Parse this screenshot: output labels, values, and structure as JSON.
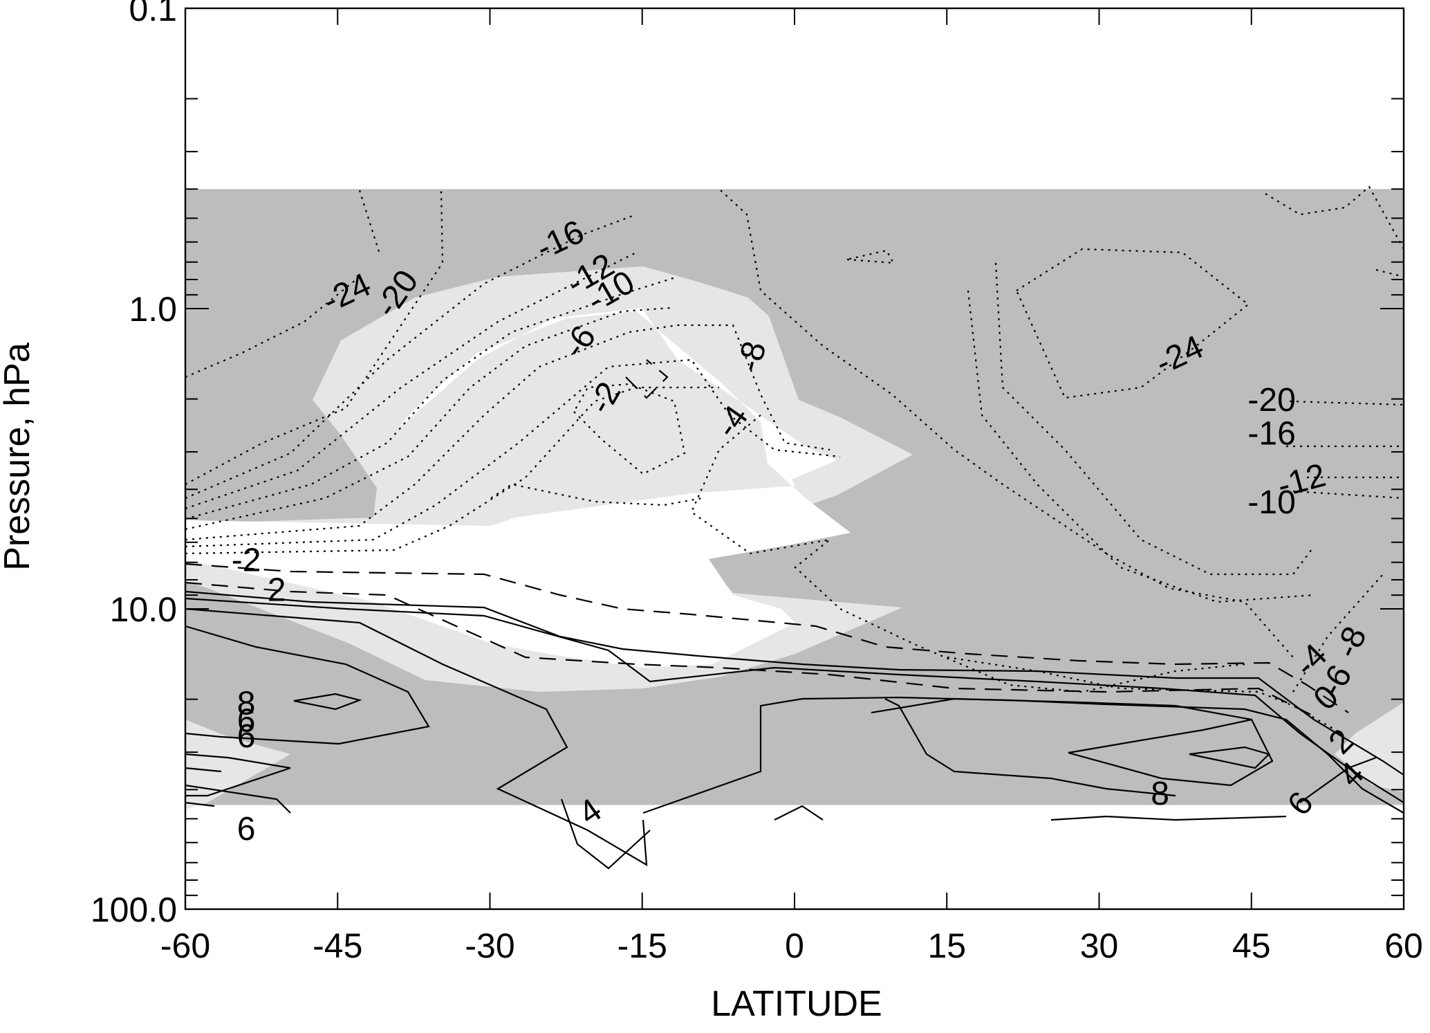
{
  "chart_data": {
    "type": "contour",
    "xlabel": "LATITUDE",
    "ylabel": "Pressure, hPa",
    "xlim": [
      -60,
      60
    ],
    "ylim_pressure_hpa": [
      100.0,
      0.1
    ],
    "y_scale": "log",
    "grid": false,
    "x_ticks": [
      -60,
      -45,
      -30,
      -15,
      0,
      15,
      30,
      45,
      60
    ],
    "x_tick_labels": [
      "-60",
      "-45",
      "-30",
      "-15",
      "0",
      "15",
      "30",
      "45",
      "60"
    ],
    "y_ticks": [
      0.1,
      1.0,
      10.0,
      100.0
    ],
    "y_tick_labels": [
      "0.1",
      "1.0",
      "10.0",
      "100.0"
    ],
    "data_extent_pressure_hpa": [
      45,
      0.4
    ],
    "shading": {
      "dark": "#bdbdbd",
      "light": "#e6e6e6",
      "white": "#ffffff"
    },
    "contour_labels": [
      "-24",
      "-20",
      "-16",
      "-12",
      "-10",
      "-8",
      "-6",
      "-4",
      "-2",
      "2",
      "4",
      "6",
      "8"
    ],
    "label_instances": [
      {
        "text": "-24",
        "lat": -44,
        "p": 0.9,
        "rot": -25
      },
      {
        "text": "-20",
        "lat": -39,
        "p": 0.9,
        "rot": -55
      },
      {
        "text": "-16",
        "lat": -23,
        "p": 0.6,
        "rot": -25
      },
      {
        "text": "-12",
        "lat": -20,
        "p": 0.78,
        "rot": -30
      },
      {
        "text": "-10",
        "lat": -18,
        "p": 0.89,
        "rot": -30
      },
      {
        "text": "-6",
        "lat": -21,
        "p": 1.3,
        "rot": -55
      },
      {
        "text": "-2",
        "lat": -18.5,
        "p": 2.0,
        "rot": -60
      },
      {
        "text": "-8",
        "lat": -4,
        "p": 1.45,
        "rot": -75
      },
      {
        "text": "-4",
        "lat": -6,
        "p": 2.4,
        "rot": -55
      },
      {
        "text": "-24",
        "lat": 38,
        "p": 1.45,
        "rot": -25
      },
      {
        "text": "-20",
        "lat": 47,
        "p": 2.05,
        "rot": 0
      },
      {
        "text": "-16",
        "lat": 47,
        "p": 2.65,
        "rot": 0
      },
      {
        "text": "-12",
        "lat": 50,
        "p": 3.8,
        "rot": -15
      },
      {
        "text": "-10",
        "lat": 47,
        "p": 4.5,
        "rot": 0
      },
      {
        "text": "-2",
        "lat": -54,
        "p": 7.0,
        "rot": 0
      },
      {
        "text": "2",
        "lat": -51,
        "p": 8.8,
        "rot": 0
      },
      {
        "text": "8",
        "lat": -54,
        "p": 21,
        "rot": 0
      },
      {
        "text": "6",
        "lat": -54,
        "p": 24,
        "rot": 0
      },
      {
        "text": "6",
        "lat": -54,
        "p": 27,
        "rot": 0
      },
      {
        "text": "6",
        "lat": -54,
        "p": 55,
        "rot": 0
      },
      {
        "text": "4",
        "lat": -20,
        "p": 48,
        "rot": -35
      },
      {
        "text": "8",
        "lat": 36,
        "p": 42,
        "rot": 0
      },
      {
        "text": "6",
        "lat": 50,
        "p": 45,
        "rot": -50
      },
      {
        "text": "4",
        "lat": 55,
        "p": 36,
        "rot": -45
      },
      {
        "text": "2",
        "lat": 54,
        "p": 28,
        "rot": -45
      },
      {
        "text": "0",
        "lat": 52.5,
        "p": 20,
        "rot": -45
      },
      {
        "text": "-4",
        "lat": 51,
        "p": 15,
        "rot": -45
      },
      {
        "text": "-6",
        "lat": 53.5,
        "p": 17.5,
        "rot": -60
      },
      {
        "text": "-8",
        "lat": 55,
        "p": 13,
        "rot": -65
      }
    ]
  }
}
